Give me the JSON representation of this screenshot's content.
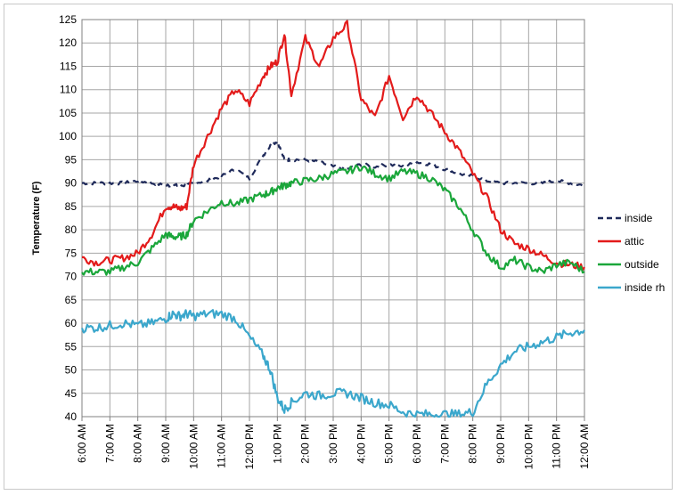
{
  "chart_data": {
    "type": "line",
    "title": "",
    "xlabel": "",
    "ylabel": "Temperature (F)",
    "ylim": [
      40,
      125
    ],
    "y_ticks": [
      40,
      45,
      50,
      55,
      60,
      65,
      70,
      75,
      80,
      85,
      90,
      95,
      100,
      105,
      110,
      115,
      120,
      125
    ],
    "x_tick_labels": [
      "6:00 AM",
      "7:00 AM",
      "8:00 AM",
      "9:00 AM",
      "10:00 AM",
      "11:00 AM",
      "12:00 PM",
      "1:00 PM",
      "2:00 PM",
      "3:00 PM",
      "4:00 PM",
      "5:00 PM",
      "6:00 PM",
      "7:00 PM",
      "8:00 PM",
      "9:00 PM",
      "10:00 PM",
      "11:00 PM",
      "12:00 AM"
    ],
    "x_hours": [
      6,
      6.5,
      7,
      7.5,
      8,
      8.5,
      9,
      9.25,
      9.5,
      9.75,
      10,
      10.5,
      11,
      11.5,
      12,
      12.5,
      12.75,
      13,
      13.25,
      13.5,
      14,
      14.5,
      15,
      15.5,
      16,
      16.5,
      17,
      17.5,
      18,
      18.5,
      19,
      19.5,
      20,
      20.5,
      21,
      21.5,
      22,
      22.5,
      23,
      23.5,
      24
    ],
    "grid": true,
    "legend_position": "right",
    "series": [
      {
        "name": "inside",
        "color": "#1f2a5a",
        "dash": "dashed",
        "values": [
          90,
          90,
          90,
          90,
          90.5,
          90,
          89.5,
          89.5,
          89.5,
          89.5,
          90,
          90.5,
          91.5,
          93,
          91,
          96,
          98,
          99,
          95,
          95,
          95,
          94.5,
          93.5,
          93,
          94,
          93.5,
          94,
          93.5,
          94.5,
          94,
          93,
          92,
          91.5,
          90.5,
          90,
          90,
          90,
          90,
          90.5,
          90,
          89.5
        ]
      },
      {
        "name": "attic",
        "color": "#e31b1b",
        "dash": "solid",
        "values": [
          74,
          73,
          73.5,
          74,
          75,
          79,
          85,
          85,
          84.5,
          85,
          94,
          100,
          106,
          110,
          107,
          113,
          115,
          116,
          122,
          109,
          121,
          115,
          121,
          124,
          108,
          104,
          113,
          104,
          109,
          105,
          101,
          97,
          92,
          87,
          80,
          77,
          76,
          74.5,
          73,
          72.5,
          72
        ]
      },
      {
        "name": "outside",
        "color": "#1aa63a",
        "dash": "solid",
        "values": [
          71,
          71,
          71,
          72,
          73,
          76,
          79,
          78.5,
          78.5,
          79,
          82,
          84,
          86,
          85.5,
          86.5,
          87.5,
          88,
          89,
          89.5,
          90,
          90.5,
          91,
          92,
          92.5,
          93.5,
          92,
          91,
          92.5,
          92,
          91,
          88.5,
          85,
          80,
          75,
          72,
          73.5,
          72,
          71,
          72.5,
          73,
          71
        ]
      },
      {
        "name": "inside rh",
        "color": "#3ba7cc",
        "dash": "solid",
        "values": [
          59,
          59,
          59.5,
          60,
          59.5,
          60,
          61,
          62,
          61.5,
          62,
          61.5,
          62,
          62,
          61,
          57,
          53,
          50,
          44,
          41.5,
          43,
          45,
          44.5,
          45,
          45,
          44,
          43,
          42.5,
          41,
          40.5,
          40.5,
          40.5,
          40.5,
          41,
          47,
          51,
          54,
          55,
          56,
          57,
          58,
          58.5
        ]
      }
    ]
  }
}
